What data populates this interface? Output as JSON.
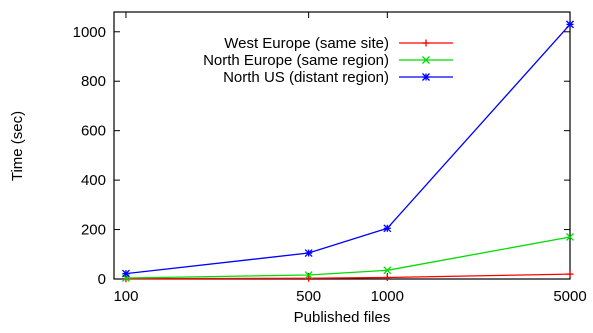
{
  "chart_data": {
    "type": "line",
    "xlabel": "Published files",
    "ylabel": "Time (sec)",
    "x": [
      100,
      500,
      1000,
      5000
    ],
    "x_ticks": [
      "100",
      "500",
      "1000",
      "5000"
    ],
    "y_ticks": [
      "0",
      "200",
      "400",
      "600",
      "800",
      "1000"
    ],
    "xlim": [
      90,
      5000
    ],
    "x_scale": "log",
    "ylim": [
      0,
      1080
    ],
    "grid": false,
    "legend_position": "top-right",
    "series": [
      {
        "name": "West Europe (same site)",
        "color": "#ff0000",
        "marker": "plus",
        "values": [
          1,
          3,
          6,
          20
        ]
      },
      {
        "name": "North Europe (same region)",
        "color": "#00dd00",
        "marker": "cross",
        "values": [
          4,
          16,
          35,
          170
        ]
      },
      {
        "name": "North US (distant region)",
        "color": "#0000ff",
        "marker": "star",
        "values": [
          22,
          105,
          205,
          1030
        ]
      }
    ]
  }
}
